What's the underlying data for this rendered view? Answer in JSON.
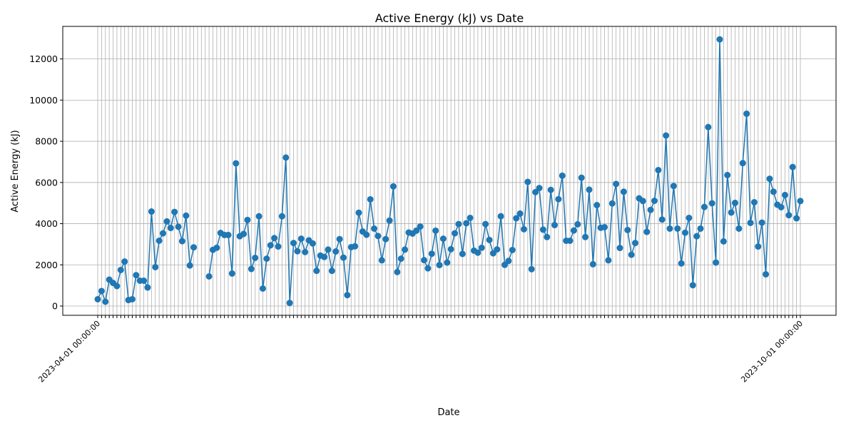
{
  "chart_data": {
    "type": "line",
    "title": "Active Energy (kJ) vs Date",
    "xlabel": "Date",
    "ylabel": "Active Energy (kJ)",
    "ylim": [
      -450,
      13580
    ],
    "yticks": [
      0,
      2000,
      4000,
      6000,
      8000,
      10000,
      12000
    ],
    "grid": true,
    "legend": "none",
    "x_first_label": "2023-04-01 00:00:00",
    "x_last_label": "2023-10-01 00:00:00",
    "series": [
      {
        "color": "#1f77b4",
        "marker": "circle",
        "values": [
          330,
          730,
          210,
          1280,
          1120,
          970,
          1750,
          2160,
          290,
          330,
          1500,
          1230,
          1230,
          900,
          4590,
          1890,
          3170,
          3530,
          4110,
          3790,
          4570,
          3850,
          3150,
          4390,
          1970,
          2850,
          null,
          null,
          null,
          1440,
          2730,
          2830,
          3550,
          3450,
          3450,
          1580,
          6930,
          3390,
          3500,
          4180,
          1800,
          2340,
          4360,
          850,
          2300,
          2950,
          3300,
          2890,
          4360,
          7210,
          150,
          3060,
          2660,
          3270,
          2620,
          3190,
          3040,
          1710,
          2450,
          2380,
          2740,
          1710,
          2650,
          3250,
          2350,
          530,
          2860,
          2900,
          4530,
          3620,
          3460,
          5180,
          3760,
          3400,
          2220,
          3250,
          4150,
          5810,
          1650,
          2300,
          2740,
          3570,
          3520,
          3660,
          3860,
          2230,
          1830,
          2540,
          3660,
          1990,
          3270,
          2110,
          2760,
          3530,
          3980,
          2530,
          4020,
          4280,
          2690,
          2590,
          2830,
          3980,
          3210,
          2560,
          2750,
          4360,
          2000,
          2190,
          2720,
          4260,
          4490,
          3730,
          6030,
          1790,
          5530,
          5730,
          3710,
          3350,
          5640,
          3930,
          5190,
          6330,
          3170,
          3170,
          3670,
          3970,
          6230,
          3350,
          5650,
          2030,
          4900,
          3800,
          3830,
          2220,
          4980,
          5930,
          2820,
          5550,
          3690,
          2490,
          3060,
          5230,
          5100,
          3600,
          4670,
          5110,
          6600,
          4200,
          8280,
          3760,
          5830,
          3760,
          2070,
          3560,
          4280,
          1010,
          3390,
          3760,
          4810,
          8690,
          4990,
          2110,
          12950,
          3140,
          6360,
          4540,
          5010,
          3760,
          6940,
          9340,
          4040,
          5040,
          2890,
          4050,
          1540,
          6180,
          5550,
          4920,
          4800,
          5390,
          4410,
          6750,
          4260,
          5100
        ]
      }
    ]
  }
}
